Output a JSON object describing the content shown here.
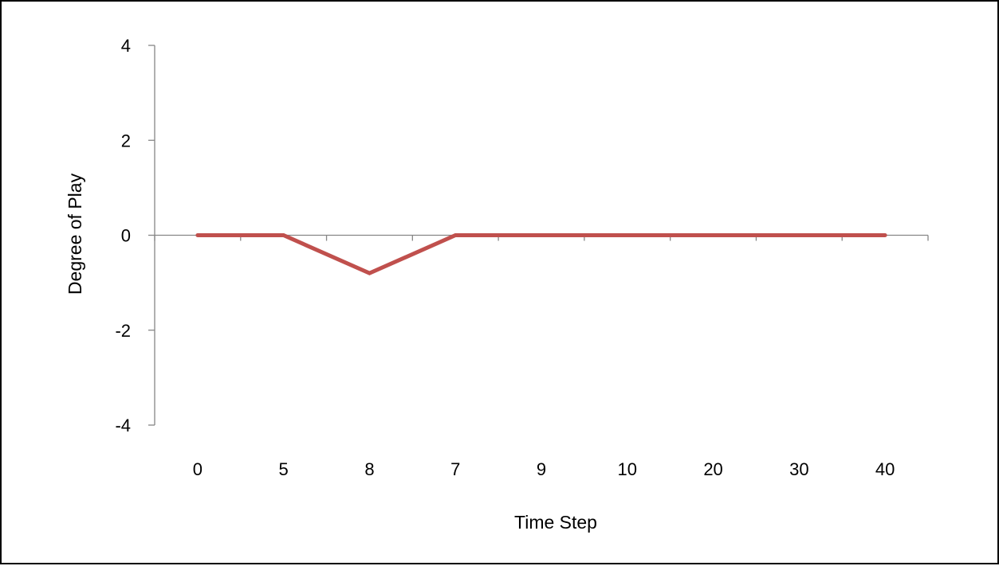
{
  "chart_data": {
    "type": "line",
    "title": "",
    "xlabel": "Time Step",
    "ylabel": "Degree of Play",
    "categories": [
      "0",
      "5",
      "8",
      "7",
      "9",
      "10",
      "20",
      "30",
      "40"
    ],
    "series": [
      {
        "values": [
          0,
          0,
          -0.8,
          0,
          0,
          0,
          0,
          0,
          0
        ]
      }
    ],
    "ylim": [
      -4,
      4
    ],
    "yticks": [
      "4",
      "2",
      "0",
      "-2",
      "-4"
    ],
    "grid": false,
    "legend": "none",
    "series_color": "#C0504D",
    "axis_color": "#868686"
  }
}
